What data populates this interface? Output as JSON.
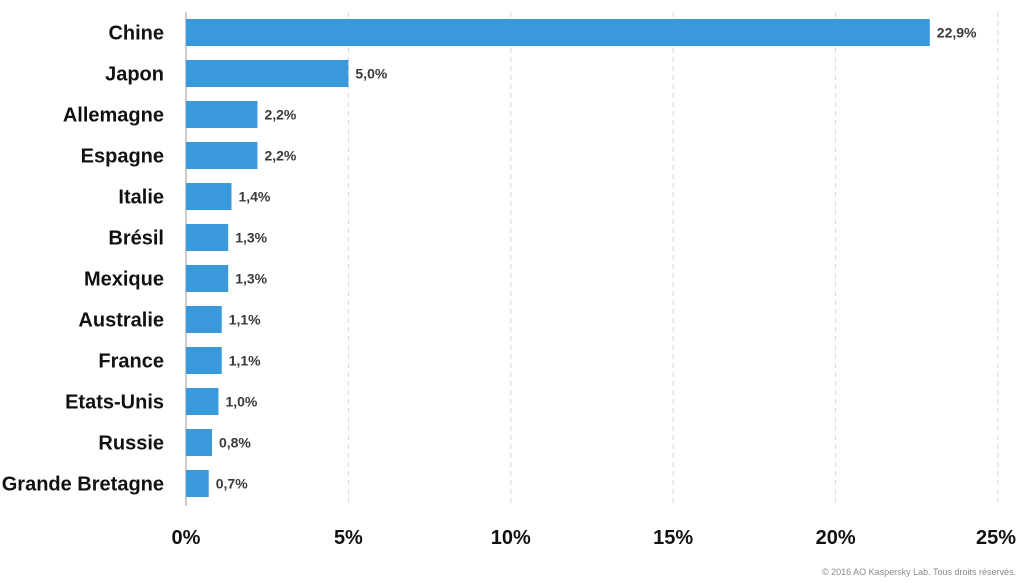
{
  "chart_data": {
    "type": "bar",
    "orientation": "horizontal",
    "categories": [
      "Chine",
      "Japon",
      "Allemagne",
      "Espagne",
      "Italie",
      "Brésil",
      "Mexique",
      "Australie",
      "France",
      "Etats-Unis",
      "Russie",
      "Grande Bretagne"
    ],
    "values": [
      22.9,
      5.0,
      2.2,
      2.2,
      1.4,
      1.3,
      1.3,
      1.1,
      1.1,
      1.0,
      0.8,
      0.7
    ],
    "value_labels": [
      "22,9%",
      "5,0%",
      "2,2%",
      "2,2%",
      "1,4%",
      "1,3%",
      "1,3%",
      "1,1%",
      "1,1%",
      "1,0%",
      "0,8%",
      "0,7%"
    ],
    "xlim": [
      0,
      25
    ],
    "xticks": [
      0,
      5,
      10,
      15,
      20,
      25
    ],
    "xtick_labels": [
      "0%",
      "5%",
      "10%",
      "15%",
      "20%",
      "25%"
    ],
    "grid": true,
    "bar_color": "#3a99db"
  },
  "footer": {
    "copyright": "© 2016 AO Kaspersky Lab. Tous droits réservés."
  }
}
